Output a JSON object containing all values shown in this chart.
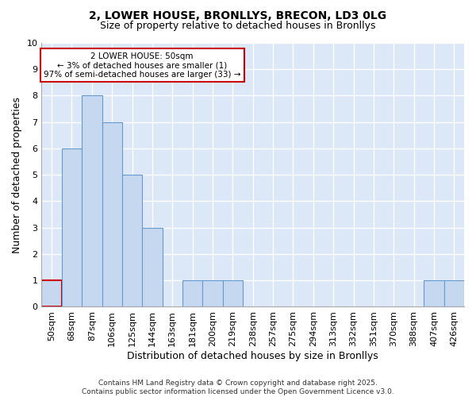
{
  "title1": "2, LOWER HOUSE, BRONLLYS, BRECON, LD3 0LG",
  "title2": "Size of property relative to detached houses in Bronllys",
  "xlabel": "Distribution of detached houses by size in Bronllys",
  "ylabel": "Number of detached properties",
  "categories": [
    "50sqm",
    "68sqm",
    "87sqm",
    "106sqm",
    "125sqm",
    "144sqm",
    "163sqm",
    "181sqm",
    "200sqm",
    "219sqm",
    "238sqm",
    "257sqm",
    "275sqm",
    "294sqm",
    "313sqm",
    "332sqm",
    "351sqm",
    "370sqm",
    "388sqm",
    "407sqm",
    "426sqm"
  ],
  "values": [
    1,
    6,
    8,
    7,
    5,
    3,
    0,
    1,
    1,
    1,
    0,
    0,
    0,
    0,
    0,
    0,
    0,
    0,
    0,
    1,
    1
  ],
  "bar_color": "#c5d8f0",
  "bar_edge_color": "#6699cc",
  "highlight_index": 0,
  "highlight_edge_color": "#cc0000",
  "annotation_text": "2 LOWER HOUSE: 50sqm\n← 3% of detached houses are smaller (1)\n97% of semi-detached houses are larger (33) →",
  "annotation_box_color": "#ffffff",
  "annotation_box_edge_color": "#cc0000",
  "ylim": [
    0,
    10
  ],
  "background_color": "#dce8f8",
  "grid_color": "#ffffff",
  "fig_background": "#ffffff",
  "footer_text": "Contains HM Land Registry data © Crown copyright and database right 2025.\nContains public sector information licensed under the Open Government Licence v3.0."
}
